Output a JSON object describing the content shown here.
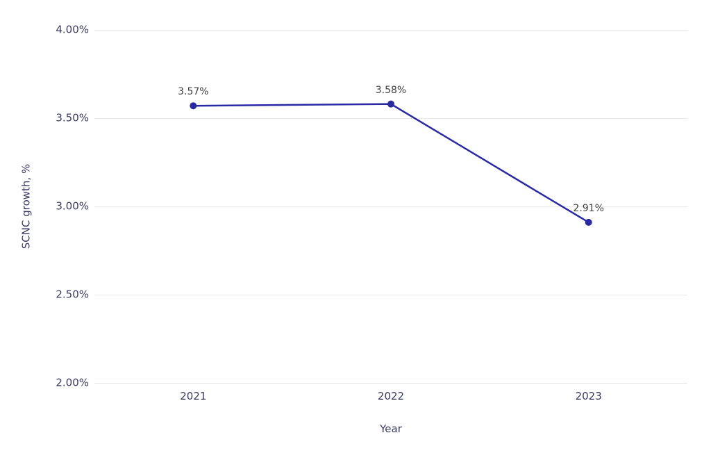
{
  "chart_data": {
    "type": "line",
    "title": "",
    "x": [
      "2021",
      "2022",
      "2023"
    ],
    "series": [
      {
        "name": "SCNC growth",
        "values": [
          3.57,
          3.58,
          2.91
        ],
        "point_labels": [
          "3.57%",
          "3.58%",
          "2.91%"
        ]
      }
    ],
    "xlabel": "Year",
    "ylabel": "SCNC growth, %",
    "ylim": [
      2.0,
      4.0
    ],
    "yticks": [
      {
        "value": 2.0,
        "label": "2.00%"
      },
      {
        "value": 2.5,
        "label": "2.50%"
      },
      {
        "value": 3.0,
        "label": "3.00%"
      },
      {
        "value": 3.5,
        "label": "3.50%"
      },
      {
        "value": 4.0,
        "label": "4.00%"
      }
    ],
    "grid": "horizontal",
    "legend": "none",
    "colors": {
      "line": "#2929A3",
      "marker": "#2929A3",
      "gridline": "#E8E8E8",
      "tick_text": "#3A3A64",
      "axis_title_text": "#3A3A64",
      "data_label_text": "#3F3F3F",
      "background": "#FFFFFF"
    }
  }
}
